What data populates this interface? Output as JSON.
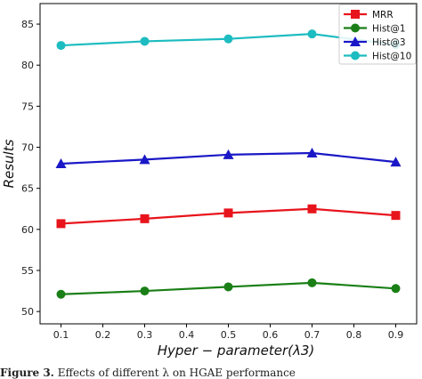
{
  "chart_data": {
    "type": "line",
    "x": [
      0.1,
      0.3,
      0.5,
      0.7,
      0.9
    ],
    "xticks": [
      "0.1",
      "0.2",
      "0.3",
      "0.4",
      "0.5",
      "0.6",
      "0.7",
      "0.8",
      "0.9"
    ],
    "yticks": [
      "50",
      "55",
      "60",
      "65",
      "70",
      "75",
      "80",
      "85"
    ],
    "xlabel": "Hyper − parameter(λ3)",
    "ylabel": "Results",
    "xlim": [
      0.05,
      0.95
    ],
    "ylim": [
      48.5,
      87.5
    ],
    "grid": false,
    "legend_position": "top-right",
    "series": [
      {
        "name": "MRR",
        "color": "#e8141c",
        "marker": "square",
        "values": [
          60.7,
          61.3,
          62.0,
          62.5,
          61.7
        ]
      },
      {
        "name": "Hist@1",
        "color": "#1a7f16",
        "marker": "circle",
        "values": [
          52.1,
          52.5,
          53.0,
          53.5,
          52.8
        ]
      },
      {
        "name": "Hist@3",
        "color": "#1a18c6",
        "marker": "triangle",
        "values": [
          68.0,
          68.5,
          69.1,
          69.3,
          68.2
        ]
      },
      {
        "name": "Hist@10",
        "color": "#1dbcc0",
        "marker": "circle",
        "values": [
          82.4,
          82.9,
          83.2,
          83.8,
          82.5
        ]
      }
    ]
  },
  "caption": {
    "label": "Figure 3.",
    "text": "Effects of different λ on HGAE performance"
  }
}
